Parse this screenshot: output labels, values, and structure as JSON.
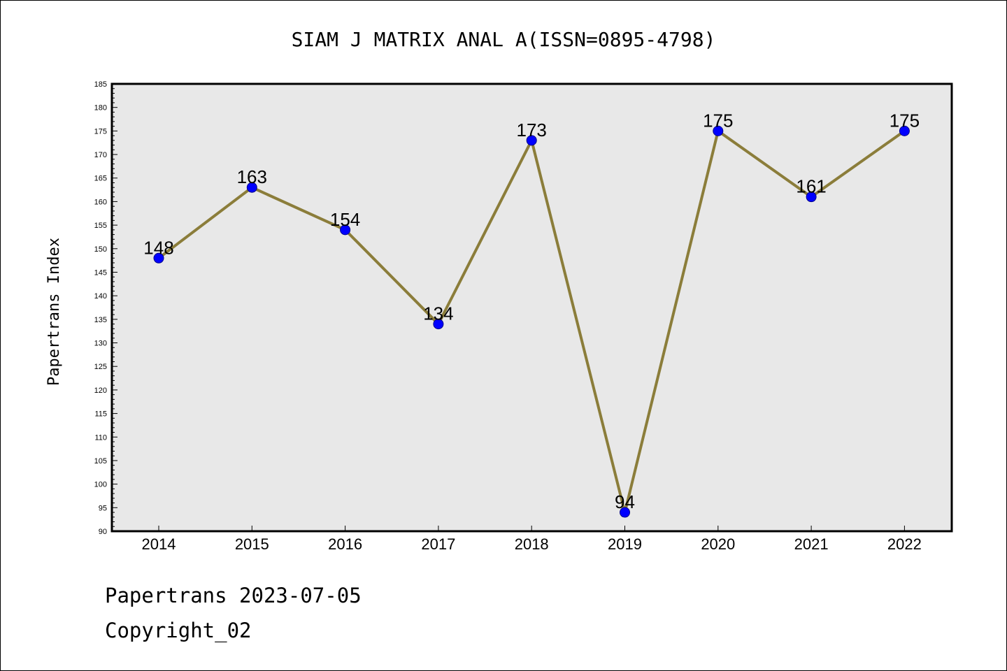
{
  "chart_data": {
    "type": "line",
    "title": "SIAM J MATRIX ANAL A(ISSN=0895-4798)",
    "xlabel": "",
    "ylabel": "Papertrans Index",
    "categories": [
      "2014",
      "2015",
      "2016",
      "2017",
      "2018",
      "2019",
      "2020",
      "2021",
      "2022"
    ],
    "series": [
      {
        "values": [
          148,
          163,
          154,
          134,
          173,
          94,
          175,
          161,
          175
        ]
      }
    ],
    "ylim": [
      90,
      185
    ],
    "ytick_step": 5,
    "grid": false,
    "legend": "none",
    "colors": {
      "line": "#8b7d3a",
      "marker": "#0000ff",
      "plot_background": "#e8e8e8"
    }
  },
  "footer": {
    "line1": "Papertrans 2023-07-05",
    "line2": "Copyright_02"
  }
}
